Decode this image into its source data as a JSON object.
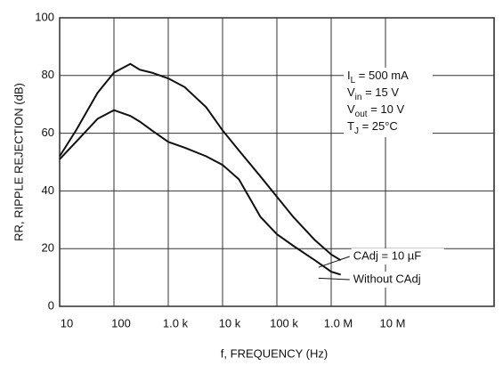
{
  "chart_data": {
    "type": "line",
    "y_label": "RR, RIPPLE REJECTION (dB)",
    "x_label": "f, FREQUENCY (Hz)",
    "log_x": true,
    "grid": true,
    "xlim": [
      10,
      1000000000
    ],
    "ylim": [
      0,
      100
    ],
    "xticks": [
      10,
      100,
      {
        "value": 1000,
        "label": "1.0 k"
      },
      {
        "value": 10000,
        "label": "10 k"
      },
      {
        "value": 100000,
        "label": "100 k"
      },
      {
        "value": 1000000,
        "label": "1.0 M"
      },
      {
        "value": 10000000,
        "label": "10 M"
      }
    ],
    "yticks": [
      0,
      20,
      40,
      60,
      80,
      100
    ],
    "x": [
      10,
      20,
      50,
      100,
      200,
      300,
      500,
      1000,
      2000,
      5000,
      10000,
      20000,
      50000,
      100000,
      200000,
      500000,
      1000000,
      1500000
    ],
    "series": [
      {
        "name": "CAdj = 10 µF",
        "color": "#111111",
        "values": [
          52,
          61,
          74,
          81,
          84,
          82,
          81,
          79,
          76,
          69,
          61,
          54,
          45,
          38,
          31,
          23,
          18,
          16
        ]
      },
      {
        "name": "Without CAdj",
        "color": "#111111",
        "values": [
          51,
          57,
          65,
          68,
          66,
          64,
          61,
          57,
          55,
          52,
          49,
          44,
          31,
          25,
          21,
          16,
          12,
          11
        ]
      }
    ],
    "annotation_lines": [
      [
        {
          "text": "I"
        },
        {
          "text": "L",
          "sub": true
        },
        {
          "text": " = 500 mA"
        }
      ],
      [
        {
          "text": "V"
        },
        {
          "text": "in",
          "sub": true
        },
        {
          "text": " = 15 V"
        }
      ],
      [
        {
          "text": "V"
        },
        {
          "text": "out",
          "sub": true
        },
        {
          "text": " = 10 V"
        }
      ],
      [
        {
          "text": "T"
        },
        {
          "text": "J",
          "sub": true
        },
        {
          "text": " = 25°C"
        }
      ]
    ]
  }
}
